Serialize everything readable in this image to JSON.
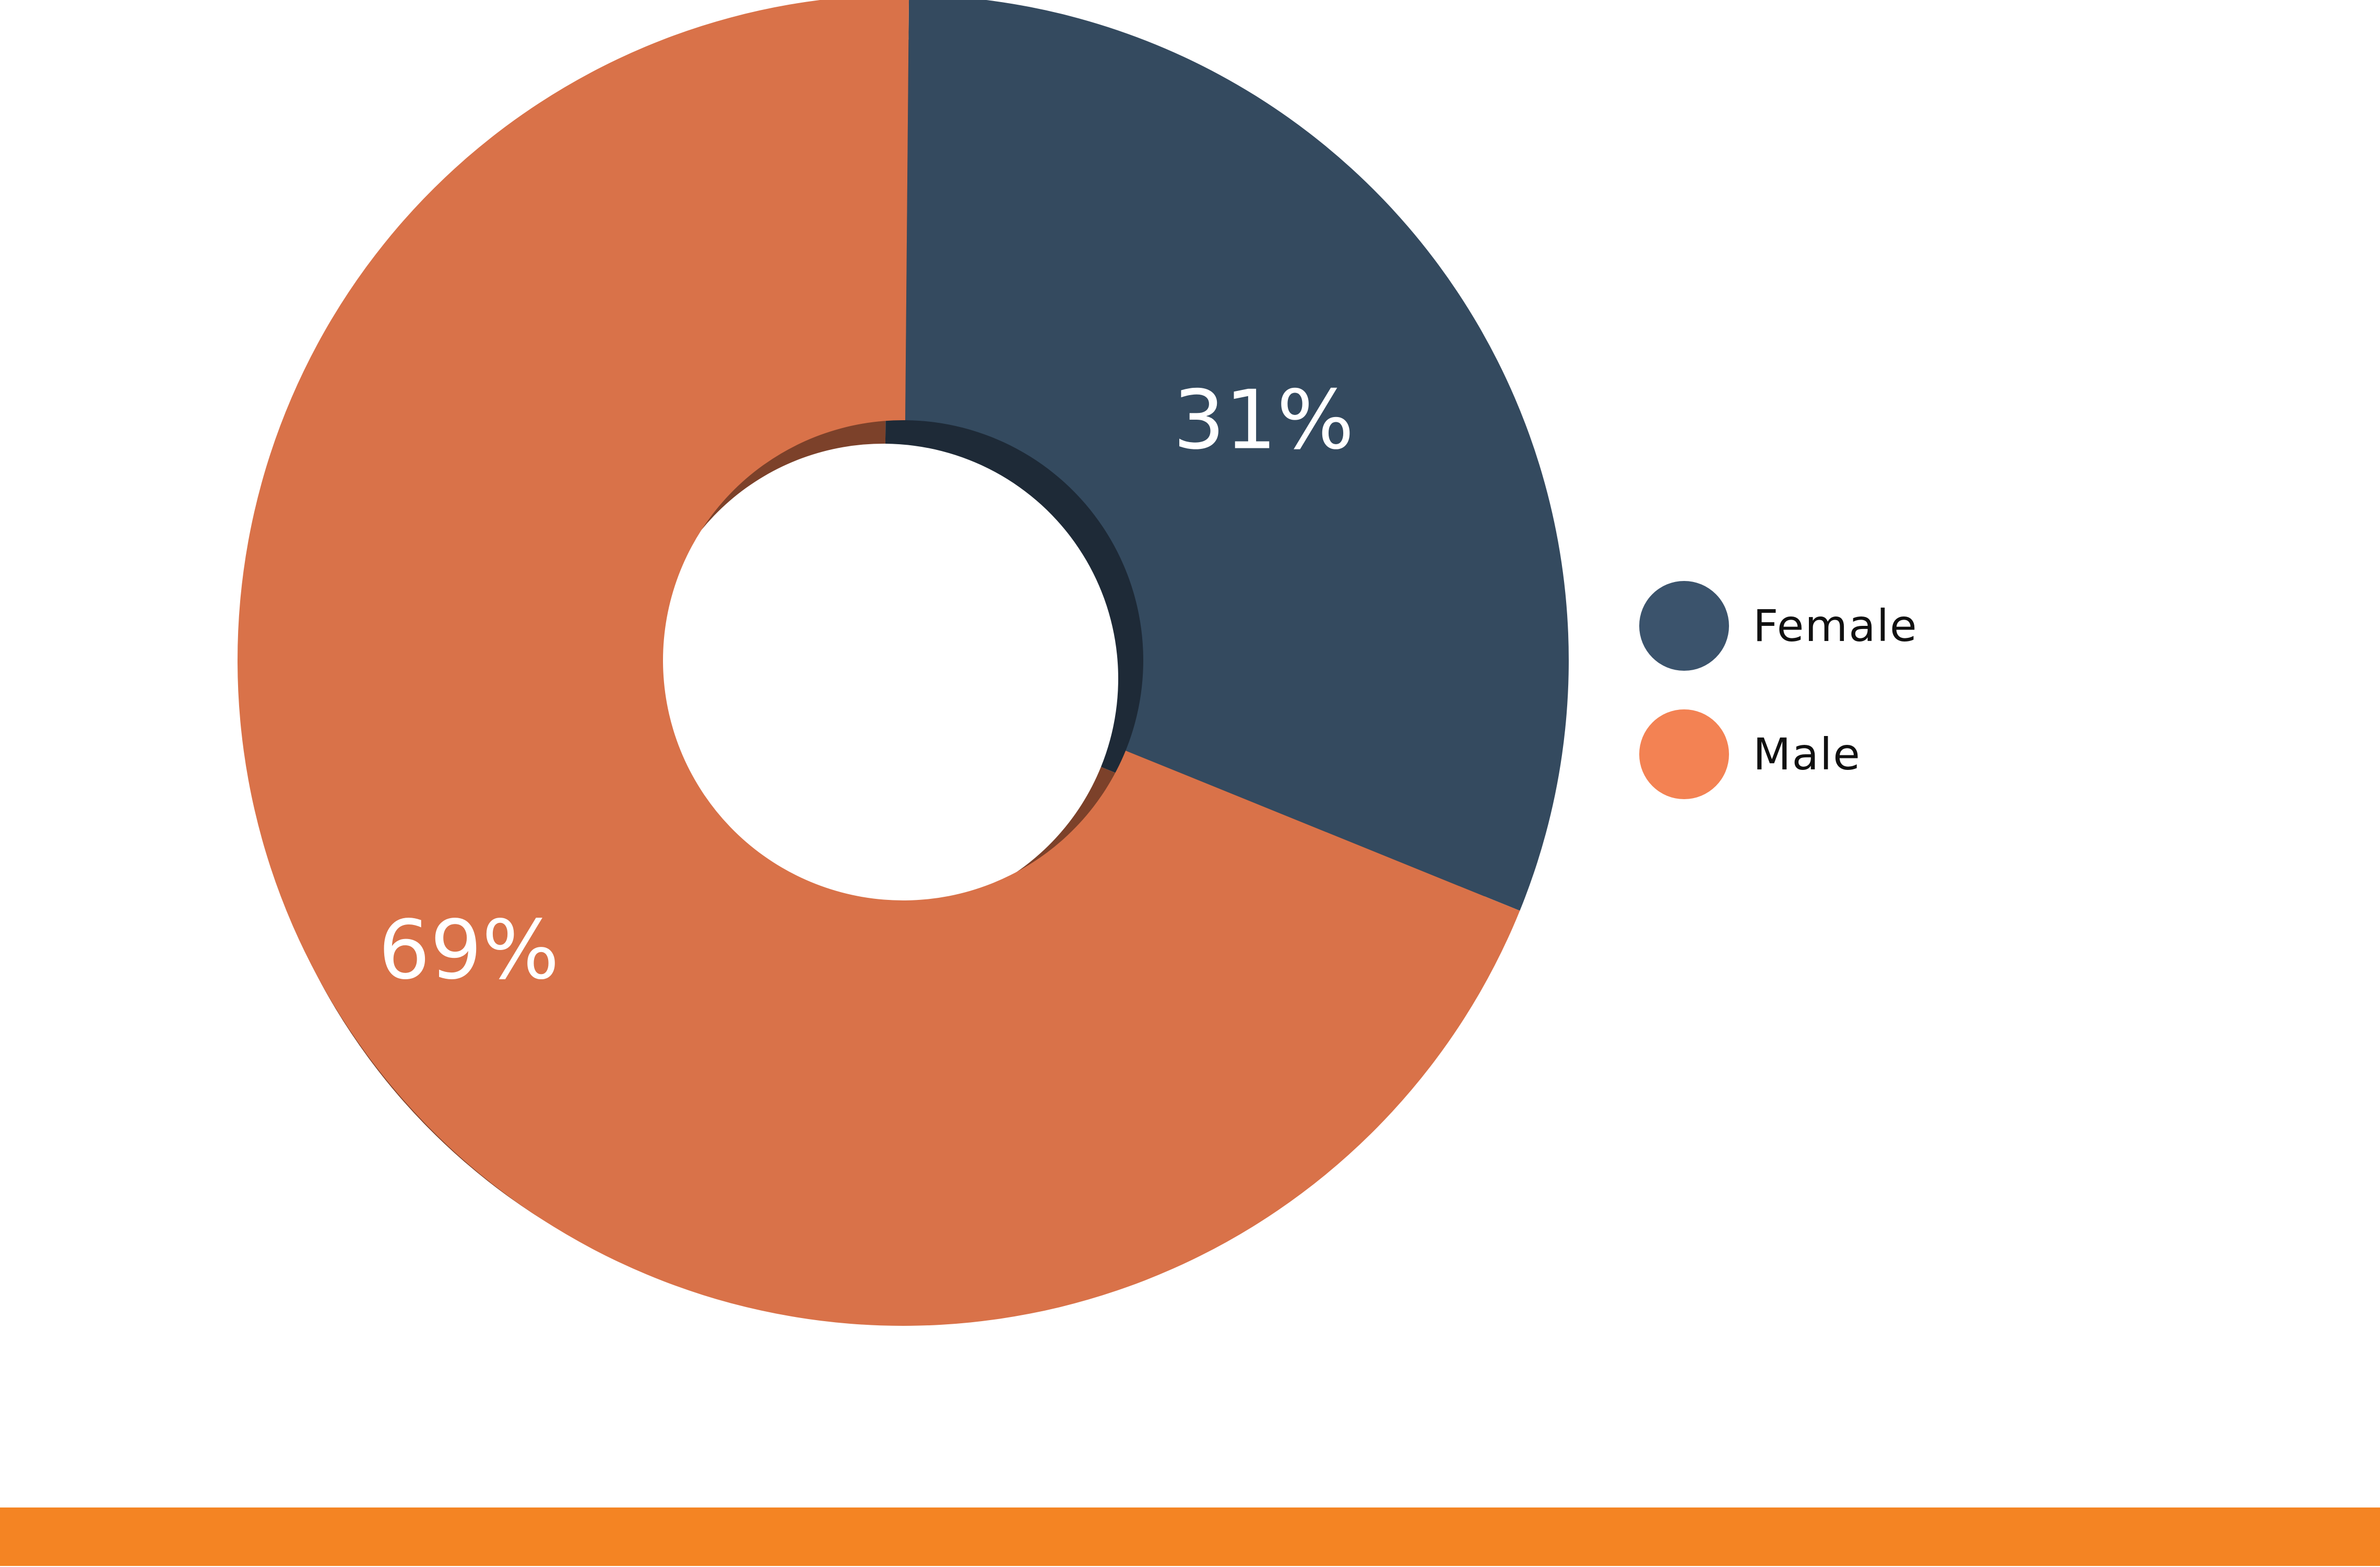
{
  "chart_data": {
    "type": "pie",
    "variant": "donut",
    "slices": [
      {
        "name": "Female",
        "value": 31,
        "label": "31%",
        "color": "#344a5f",
        "shade": "#1e2a37"
      },
      {
        "name": "Male",
        "value": 69,
        "label": "69%",
        "color": "#d97249",
        "shade": "#7c412a"
      }
    ],
    "legend": {
      "placement": "right",
      "items": [
        {
          "label": "Female",
          "color": "#3b536c"
        },
        {
          "label": "Male",
          "color": "#f38253"
        }
      ]
    }
  },
  "footer": {
    "color": "#f48423"
  }
}
